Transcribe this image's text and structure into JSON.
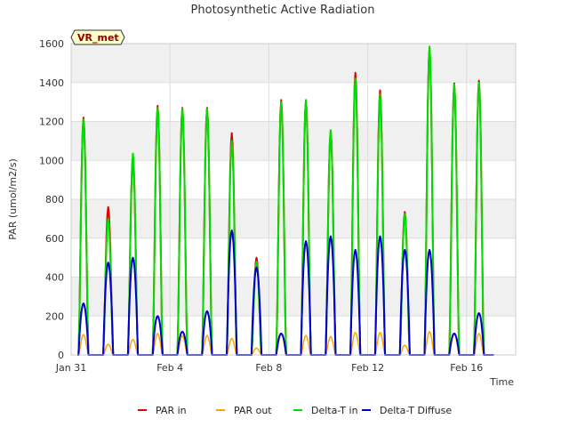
{
  "chart_data": {
    "type": "line",
    "title": "Photosynthetic Active Radiation",
    "xlabel": "Time",
    "ylabel": "PAR (umol/m2/s)",
    "ylim": [
      0,
      1600
    ],
    "yticks": [
      0,
      200,
      400,
      600,
      800,
      1000,
      1200,
      1400,
      1600
    ],
    "xlim": [
      "2024-01-31",
      "2024-02-18"
    ],
    "xtick_labels": [
      "Jan 31",
      "Feb 4",
      "Feb 8",
      "Feb 12",
      "Feb 16"
    ],
    "xtick_days": [
      0,
      4,
      8,
      12,
      16
    ],
    "grid": true,
    "banded_background": true,
    "legend_position": "bottom",
    "site_label": "VR_met",
    "series": [
      {
        "name": "PAR in",
        "color": "#dd0000",
        "daily_peak": [
          1220,
          760,
          1010,
          1280,
          1270,
          1270,
          1140,
          500,
          1310,
          1310,
          1150,
          1450,
          1360,
          735,
          1580,
          1395,
          1410
        ]
      },
      {
        "name": "PAR out",
        "color": "#ffa500",
        "daily_peak": [
          105,
          55,
          80,
          110,
          100,
          100,
          85,
          35,
          110,
          100,
          95,
          115,
          115,
          50,
          120,
          110,
          110
        ]
      },
      {
        "name": "Delta-T in",
        "color": "#00dd00",
        "daily_peak": [
          1210,
          700,
          1035,
          1270,
          1265,
          1265,
          1100,
          480,
          1300,
          1310,
          1155,
          1420,
          1340,
          725,
          1585,
          1390,
          1400
        ]
      },
      {
        "name": "Delta-T Diffuse",
        "color": "#0000cc",
        "daily_peak": [
          265,
          475,
          500,
          200,
          120,
          225,
          640,
          450,
          110,
          585,
          610,
          540,
          610,
          540,
          540,
          110,
          215
        ]
      }
    ]
  }
}
